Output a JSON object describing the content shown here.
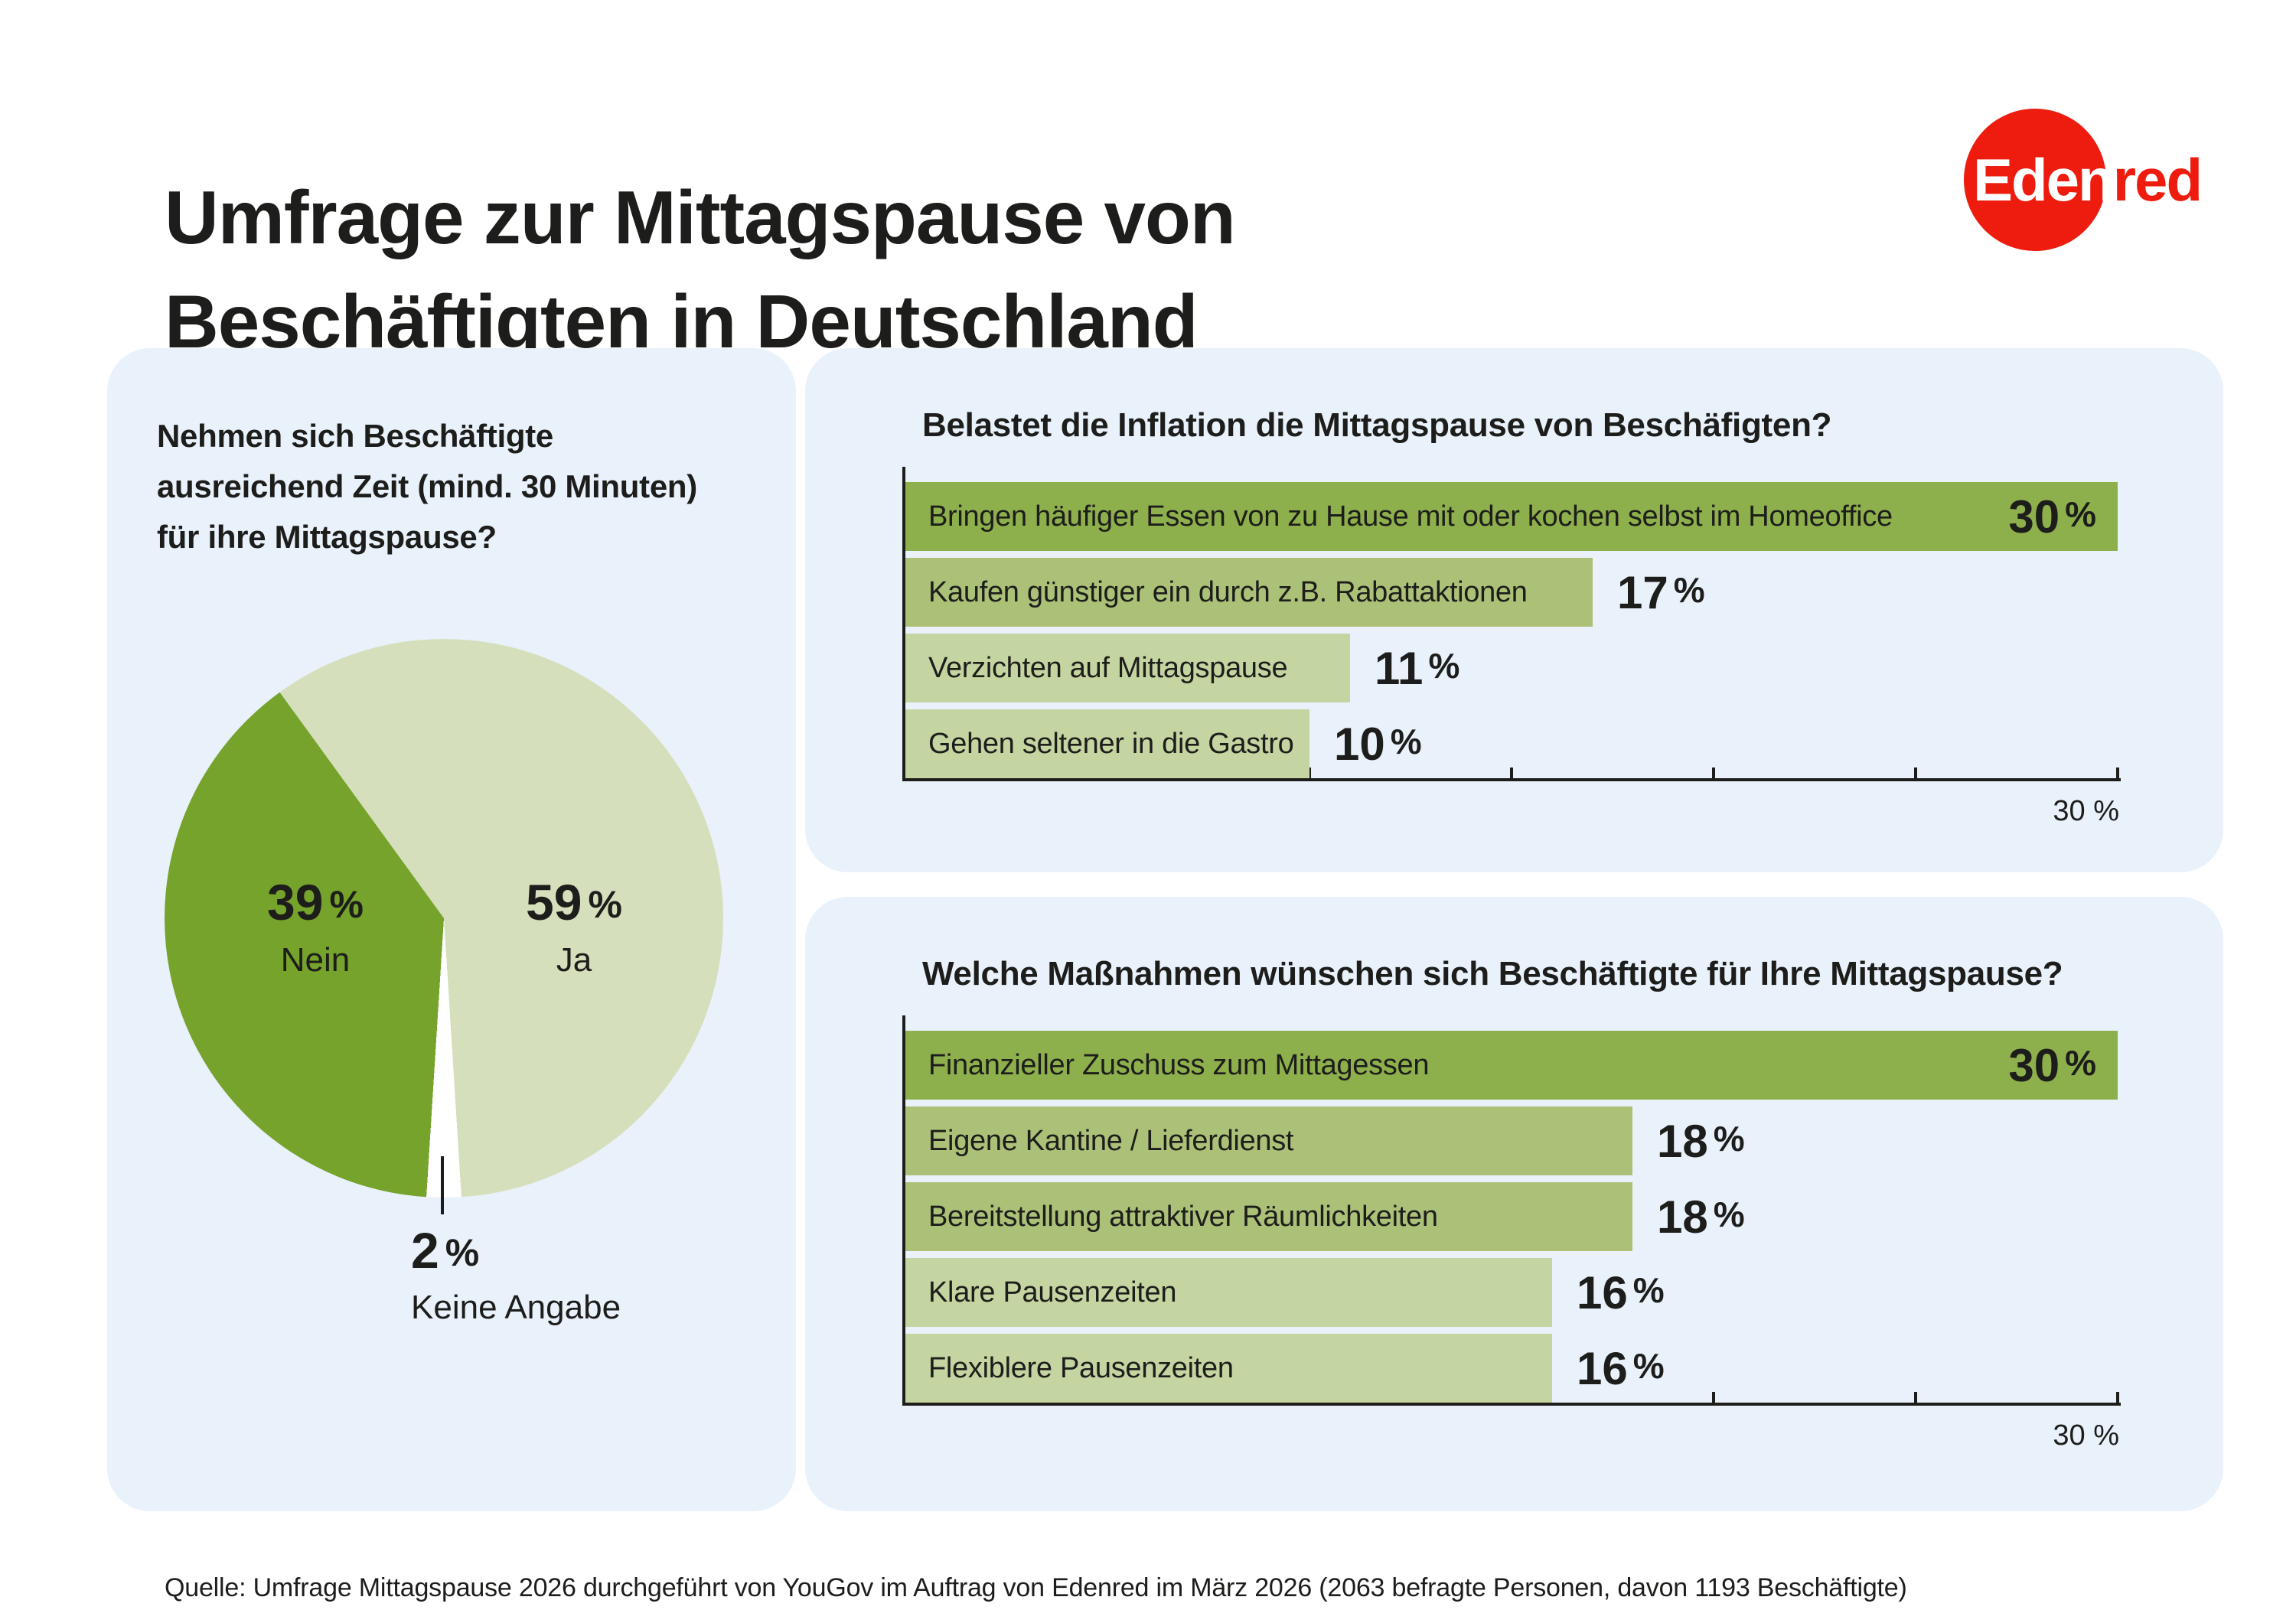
{
  "page": {
    "title_line1": "Umfrage zur Mittagspause von",
    "title_line2": "Beschäftigten in Deutschland",
    "footer": "Quelle: Umfrage Mittagspause 2026 durchgeführt von YouGov im Auftrag von Edenred im März 2026 (2063 befragte Personen, davon 1193 Beschäftigte)",
    "background_color": "#ffffff",
    "panel_color": "#e9f1fb",
    "text_color": "#1d1d1b"
  },
  "logo": {
    "text_white": "Eden",
    "text_red": "red",
    "brand_red": "#ed1c0e"
  },
  "chart_data": [
    {
      "type": "pie",
      "title": "Nehmen sich Beschäftigte ausreichend Zeit (mind. 30 Minuten) für ihre Mittagspause?",
      "title_lines": [
        "Nehmen sich Beschäftigte",
        "ausreichend Zeit (mind. 30 Minuten)",
        "für ihre Mittagspause?"
      ],
      "unit": "%",
      "start_angle_deg": -36,
      "legend_position": "inside",
      "slices": [
        {
          "label": "Ja",
          "value": 59,
          "color": "#d6dfbc"
        },
        {
          "label": "Keine Angabe",
          "value": 2,
          "color": "#ffffff"
        },
        {
          "label": "Nein",
          "value": 39,
          "color": "#76a32b"
        }
      ]
    },
    {
      "type": "bar",
      "orientation": "horizontal",
      "title": "Belastet die Inflation die Mittagspause von Beschäfigten?",
      "unit": "%",
      "x_max": 30,
      "tick_step": 5,
      "grid": false,
      "axis_label": "30 %",
      "bars": [
        {
          "label": "Bringen häufiger Essen von zu Hause mit oder kochen selbst im Homeoffice",
          "value": 30,
          "color": "#8eb04c",
          "value_inside": true
        },
        {
          "label": "Kaufen günstiger ein durch z.B. Rabattaktionen",
          "value": 17,
          "color": "#abc178",
          "value_inside": false
        },
        {
          "label": "Verzichten auf Mittagspause",
          "value": 11,
          "color": "#c5d5a1",
          "value_inside": false
        },
        {
          "label": "Gehen seltener in die Gastro",
          "value": 10,
          "color": "#c5d5a1",
          "value_inside": false
        }
      ]
    },
    {
      "type": "bar",
      "orientation": "horizontal",
      "title": "Welche Maßnahmen wünschen sich Beschäftigte für Ihre Mittagspause?",
      "unit": "%",
      "x_max": 30,
      "tick_step": 5,
      "grid": false,
      "axis_label": "30 %",
      "bars": [
        {
          "label": "Finanzieller Zuschuss zum Mittagessen",
          "value": 30,
          "color": "#8eb04c",
          "value_inside": true
        },
        {
          "label": "Eigene Kantine / Lieferdienst",
          "value": 18,
          "color": "#abc178",
          "value_inside": false
        },
        {
          "label": "Bereitstellung attraktiver Räumlichkeiten",
          "value": 18,
          "color": "#abc178",
          "value_inside": false
        },
        {
          "label": "Klare Pausenzeiten",
          "value": 16,
          "color": "#c5d5a1",
          "value_inside": false
        },
        {
          "label": "Flexiblere Pausenzeiten",
          "value": 16,
          "color": "#c5d5a1",
          "value_inside": false
        }
      ]
    }
  ]
}
